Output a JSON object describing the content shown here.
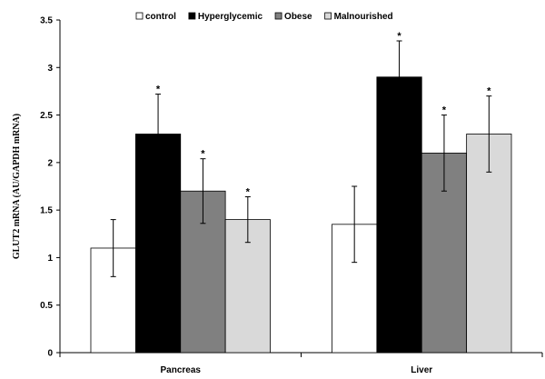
{
  "chart_data": {
    "type": "bar",
    "title": "",
    "xlabel": "",
    "ylabel": "GLUT2 mRNA (AU/GAPDH mRNA)",
    "ylim": [
      0,
      3.5
    ],
    "yticks": [
      "0",
      "0.5",
      "1",
      "1.5",
      "2",
      "2.5",
      "3",
      "3.5"
    ],
    "categories": [
      "Pancreas",
      "Liver"
    ],
    "grid": false,
    "legend_position": "top",
    "series": [
      {
        "name": "control",
        "values": [
          1.1,
          1.35
        ],
        "errors": [
          0.3,
          0.4
        ],
        "significant": [
          false,
          false
        ],
        "color": "#ffffff"
      },
      {
        "name": "Hyperglycemic",
        "values": [
          2.3,
          2.9
        ],
        "errors": [
          0.42,
          0.38
        ],
        "significant": [
          true,
          true
        ],
        "color": "#000000"
      },
      {
        "name": "Obese",
        "values": [
          1.7,
          2.1
        ],
        "errors": [
          0.34,
          0.4
        ],
        "significant": [
          true,
          true
        ],
        "color": "#808080"
      },
      {
        "name": "Malnourished",
        "values": [
          1.4,
          2.3
        ],
        "errors": [
          0.24,
          0.4
        ],
        "significant": [
          true,
          true
        ],
        "color": "#d9d9d9"
      }
    ],
    "significance_marker": "*"
  }
}
